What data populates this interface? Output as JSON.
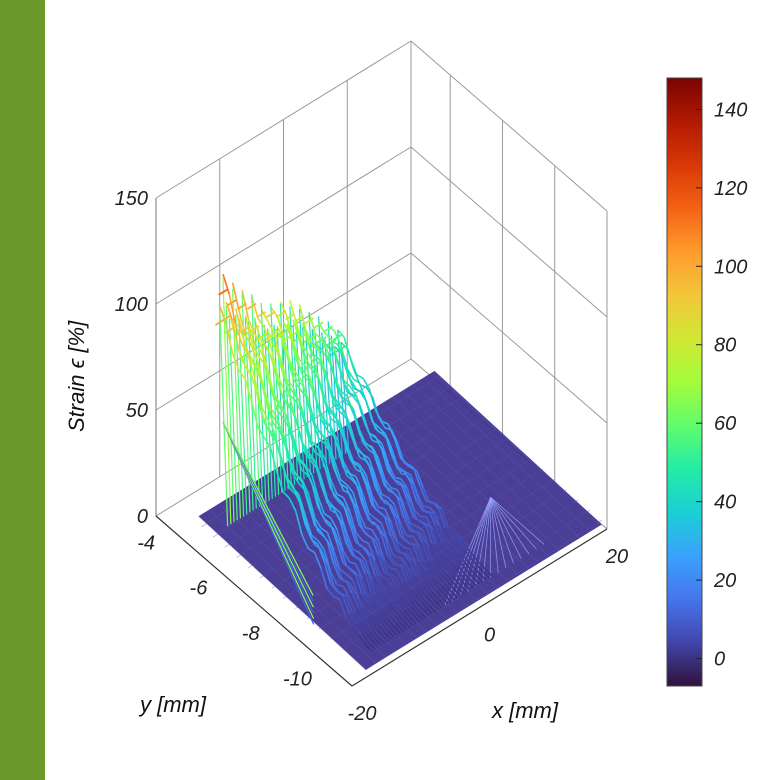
{
  "colors": {
    "side_bar": "#6b9a2a",
    "surface_base": "#3b2f8c",
    "grid": "#9a9a9a",
    "colormap": [
      "#30123b",
      "#4145ab",
      "#4675ed",
      "#39a2fc",
      "#1bcfd4",
      "#24eca6",
      "#61fc6c",
      "#a4fc3b",
      "#d1e834",
      "#f3c63a",
      "#fe9b2d",
      "#f36315",
      "#d93806",
      "#b11901",
      "#7a0402"
    ]
  },
  "chart_data": {
    "type": "surface",
    "zlabel": "Strain ϵ  [%]",
    "xlabel": "x  [mm]",
    "ylabel": "y  [mm]",
    "xlim": [
      -20,
      20
    ],
    "ylim": [
      -11,
      -3.5
    ],
    "zlim": [
      0,
      150
    ],
    "z_ticks": [
      0,
      50,
      100,
      150
    ],
    "y_ticks": [
      -4,
      -6,
      -8,
      -10
    ],
    "x_ticks": [
      -20,
      0,
      20
    ],
    "colorbar": {
      "ticks": [
        0,
        20,
        40,
        60,
        80,
        100,
        120,
        140
      ],
      "range": [
        -7,
        148
      ]
    },
    "grid": true,
    "ridges": [
      {
        "x": -14,
        "peak": 113
      },
      {
        "x": -12.5,
        "peak": 105
      },
      {
        "x": -11,
        "peak": 100
      },
      {
        "x": -9.5,
        "peak": 97
      },
      {
        "x": -8,
        "peak": 90
      },
      {
        "x": -6.5,
        "peak": 87
      },
      {
        "x": -5,
        "peak": 84
      },
      {
        "x": -3.5,
        "peak": 80
      },
      {
        "x": -2,
        "peak": 76
      },
      {
        "x": -0.5,
        "peak": 72
      },
      {
        "x": 1,
        "peak": 67
      },
      {
        "x": 2.5,
        "peak": 62
      },
      {
        "x": 4,
        "peak": 55
      }
    ]
  }
}
